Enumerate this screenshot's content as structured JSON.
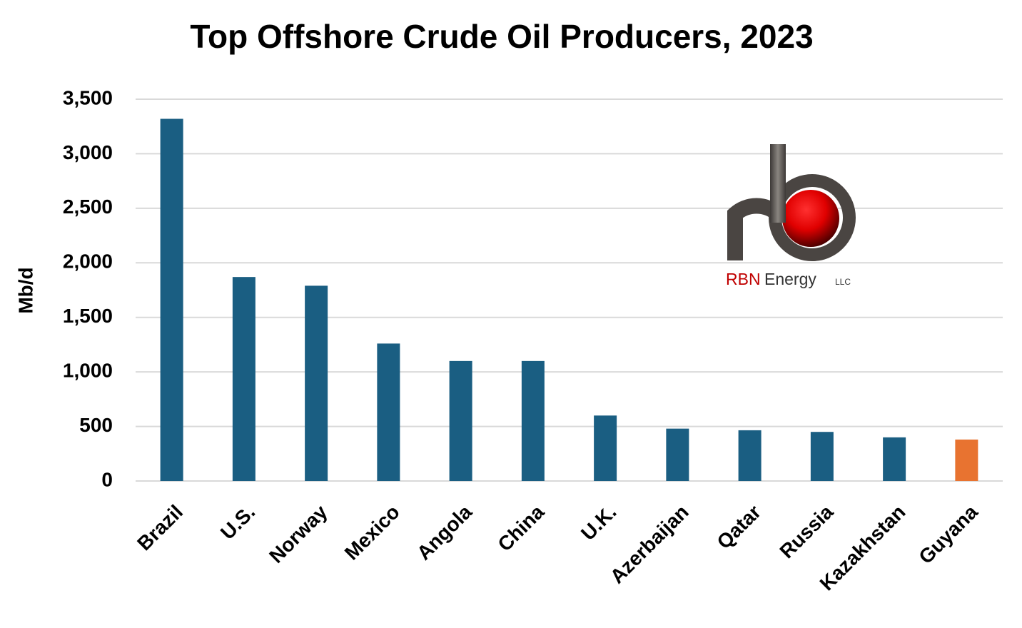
{
  "chart_data": {
    "type": "bar",
    "title": "Top Offshore Crude Oil Producers, 2023",
    "y_label": "Mb/d",
    "categories": [
      "Brazil",
      "U.S.",
      "Norway",
      "Mexico",
      "Angola",
      "China",
      "U.K.",
      "Azerbaijan",
      "Qatar",
      "Russia",
      "Kazakhstan",
      "Guyana"
    ],
    "values": [
      3320,
      1870,
      1790,
      1260,
      1100,
      1100,
      600,
      480,
      465,
      450,
      400,
      380
    ],
    "colors": [
      "#1a5e82",
      "#1a5e82",
      "#1a5e82",
      "#1a5e82",
      "#1a5e82",
      "#1a5e82",
      "#1a5e82",
      "#1a5e82",
      "#1a5e82",
      "#1a5e82",
      "#1a5e82",
      "#e87330"
    ],
    "ylim": [
      0,
      3500
    ],
    "yticks": [
      0,
      500,
      {
        "value": 1000,
        "label": "1,000"
      },
      {
        "value": 1500,
        "label": "1,500"
      },
      {
        "value": 2000,
        "label": "2,000"
      },
      {
        "value": 2500,
        "label": "2,500"
      },
      {
        "value": 3000,
        "label": "3,000"
      },
      {
        "value": 3500,
        "label": "3,500"
      }
    ],
    "grid": true,
    "logo": {
      "brand": "RBN",
      "name": "Energy",
      "suffix": "LLC"
    }
  }
}
